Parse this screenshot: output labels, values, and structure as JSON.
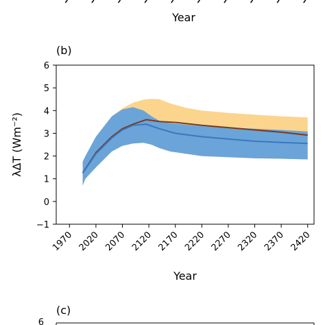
{
  "panels": {
    "a": {
      "xlabel": "Year"
    },
    "b": {
      "label": "(b)"
    },
    "c": {
      "label": "(c)",
      "first_tick": "6"
    }
  },
  "chart_data": {
    "type": "area",
    "title": "",
    "xlabel": "Year",
    "ylabel": "λΔT (Wm⁻²)",
    "xlim": [
      1945,
      2432
    ],
    "ylim": [
      -1,
      6
    ],
    "xticks": [
      1970,
      2020,
      2070,
      2120,
      2170,
      2220,
      2270,
      2320,
      2370,
      2420
    ],
    "yticks": [
      -1,
      0,
      1,
      2,
      3,
      4,
      5,
      6
    ],
    "grid": false,
    "legend": "none",
    "colors": {
      "orange_band": "#fbd48e",
      "blue_band": "#5b9ee0",
      "brown_line": "#7a3a1e",
      "blue_line": "#3a77c0"
    },
    "series": [
      {
        "kind": "band",
        "color": "orange_band",
        "x": [
          1995,
          2000,
          2020,
          2050,
          2070,
          2090,
          2110,
          2125,
          2140,
          2160,
          2190,
          2220,
          2270,
          2320,
          2370,
          2420
        ],
        "upper": [
          1.75,
          2.0,
          2.85,
          3.75,
          4.1,
          4.35,
          4.48,
          4.52,
          4.5,
          4.32,
          4.12,
          4.0,
          3.9,
          3.82,
          3.75,
          3.7
        ],
        "lower": [
          0.7,
          1.0,
          1.5,
          2.2,
          2.45,
          2.55,
          2.58,
          2.5,
          2.35,
          2.2,
          2.1,
          2.0,
          1.95,
          1.9,
          1.88,
          1.85
        ]
      },
      {
        "kind": "band",
        "color": "blue_band",
        "x": [
          1995,
          2000,
          2020,
          2050,
          2070,
          2090,
          2110,
          2125,
          2140,
          2160,
          2190,
          2220,
          2270,
          2320,
          2370,
          2420
        ],
        "upper": [
          1.75,
          2.0,
          2.85,
          3.75,
          4.05,
          4.15,
          4.0,
          3.75,
          3.55,
          3.45,
          3.38,
          3.32,
          3.25,
          3.2,
          3.15,
          3.08
        ],
        "lower": [
          0.7,
          1.0,
          1.5,
          2.2,
          2.45,
          2.55,
          2.58,
          2.5,
          2.35,
          2.2,
          2.1,
          2.0,
          1.95,
          1.9,
          1.88,
          1.85
        ]
      },
      {
        "kind": "line",
        "color": "brown_line",
        "x": [
          1995,
          2020,
          2050,
          2070,
          2090,
          2115,
          2140,
          2170,
          2220,
          2270,
          2320,
          2370,
          2420
        ],
        "y": [
          1.25,
          2.15,
          2.85,
          3.2,
          3.4,
          3.6,
          3.52,
          3.48,
          3.35,
          3.25,
          3.15,
          3.05,
          2.92
        ]
      },
      {
        "kind": "line",
        "color": "blue_line",
        "x": [
          1995,
          2020,
          2050,
          2070,
          2090,
          2115,
          2140,
          2170,
          2220,
          2270,
          2320,
          2370,
          2420
        ],
        "y": [
          1.25,
          2.1,
          2.8,
          3.15,
          3.35,
          3.4,
          3.2,
          3.0,
          2.85,
          2.75,
          2.65,
          2.6,
          2.55
        ]
      }
    ]
  }
}
